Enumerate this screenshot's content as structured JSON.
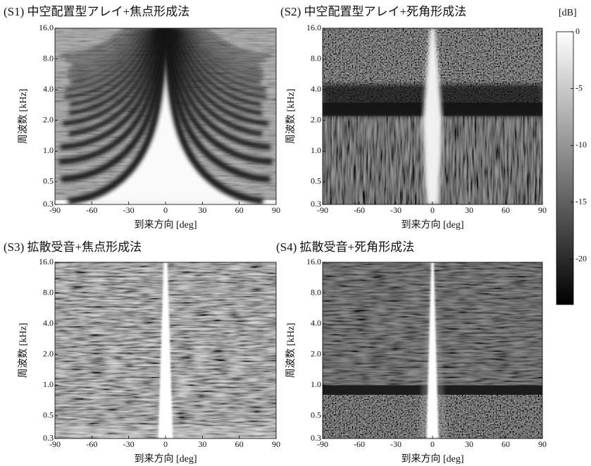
{
  "chart_data": [
    {
      "type": "heatmap",
      "title": "(S1) 中空配置型アレイ+焦点形成法",
      "xlabel": "到来方向 [deg]",
      "ylabel": "周波数 [kHz]",
      "xlim": [
        -90,
        90
      ],
      "xticks": [
        -90,
        -60,
        -30,
        0,
        30,
        60,
        90
      ],
      "yscale": "log",
      "ylim": [
        0.3,
        16
      ],
      "yticks": [
        0.3,
        0.5,
        {
          "value": 1,
          "label": "1.0"
        },
        {
          "value": 2,
          "label": "2.0"
        },
        {
          "value": 4,
          "label": "4.0"
        },
        {
          "value": 8,
          "label": "8.0"
        },
        {
          "value": 16,
          "label": "16.0"
        }
      ]
    },
    {
      "type": "heatmap",
      "title": "(S2) 中空配置型アレイ+死角形成法",
      "xlabel": "到来方向 [deg]",
      "ylabel": "周波数 [kHz]",
      "xlim": [
        -90,
        90
      ],
      "xticks": [
        -90,
        -60,
        -30,
        0,
        30,
        60,
        90
      ],
      "yscale": "log",
      "ylim": [
        0.3,
        16
      ],
      "yticks": [
        0.3,
        0.5,
        {
          "value": 1,
          "label": "1.0"
        },
        {
          "value": 2,
          "label": "2.0"
        },
        {
          "value": 4,
          "label": "4.0"
        },
        {
          "value": 8,
          "label": "8.0"
        },
        {
          "value": 16,
          "label": "16.0"
        }
      ]
    },
    {
      "type": "heatmap",
      "title": "(S3) 拡散受音+焦点形成法",
      "xlabel": "到来方向 [deg]",
      "ylabel": "周波数 [kHz]",
      "xlim": [
        -90,
        90
      ],
      "xticks": [
        -90,
        -60,
        -30,
        0,
        30,
        60,
        90
      ],
      "yscale": "log",
      "ylim": [
        0.3,
        16
      ],
      "yticks": [
        0.3,
        0.5,
        {
          "value": 1,
          "label": "1.0"
        },
        {
          "value": 2,
          "label": "2.0"
        },
        {
          "value": 4,
          "label": "4.0"
        },
        {
          "value": 8,
          "label": "8.0"
        },
        {
          "value": 16,
          "label": "16.0"
        }
      ]
    },
    {
      "type": "heatmap",
      "title": "(S4) 拡散受音+死角形成法",
      "xlabel": "到来方向 [deg]",
      "ylabel": "周波数 [kHz]",
      "xlim": [
        -90,
        90
      ],
      "xticks": [
        -90,
        -60,
        -30,
        0,
        30,
        60,
        90
      ],
      "yscale": "log",
      "ylim": [
        0.3,
        16
      ],
      "yticks": [
        0.3,
        0.5,
        {
          "value": 1,
          "label": "1.0"
        },
        {
          "value": 2,
          "label": "2.0"
        },
        {
          "value": 4,
          "label": "4.0"
        },
        {
          "value": 8,
          "label": "8.0"
        },
        {
          "value": 16,
          "label": "16.0"
        }
      ]
    }
  ],
  "colorbar": {
    "label": "[dB]",
    "lim": [
      -24,
      0
    ],
    "ticks": [
      0,
      -5,
      -10,
      -15,
      -20
    ]
  }
}
